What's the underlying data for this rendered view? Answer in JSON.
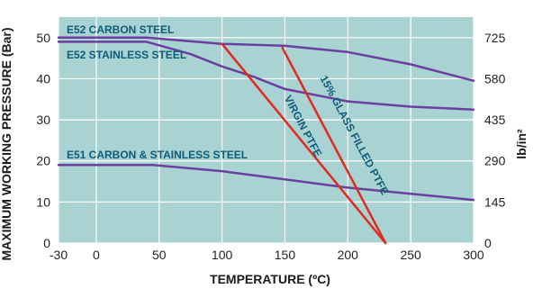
{
  "chart_data": {
    "type": "line",
    "xlabel": "TEMPERATURE (ºC)",
    "ylabel": "MAXIMUM WORKING PRESSURE (Bar)",
    "y2label": "lb/in²",
    "xlim": [
      -30,
      300
    ],
    "ylim": [
      0,
      55
    ],
    "x_ticks": [
      -30,
      0,
      50,
      100,
      150,
      200,
      250,
      300
    ],
    "y_ticks": [
      0,
      10,
      20,
      30,
      40,
      50
    ],
    "y2_ticks": [
      0,
      145,
      290,
      435,
      580,
      725
    ],
    "grid": true,
    "colors": {
      "plot_background": "#a9d2d2",
      "grid": "#ffffff",
      "metal_lines": "#6a3fa0",
      "ptfe_lines": "#e02a1f",
      "labels": "#0e5c78"
    },
    "series": [
      {
        "name": "E52 CARBON STEEL",
        "color": "#6a3fa0",
        "points": [
          [
            -30,
            50
          ],
          [
            40,
            50
          ],
          [
            100,
            48.5
          ],
          [
            150,
            48
          ],
          [
            200,
            46.5
          ],
          [
            250,
            43.5
          ],
          [
            300,
            39.5
          ]
        ]
      },
      {
        "name": "E52 STAINLESS STEEL",
        "color": "#6a3fa0",
        "points": [
          [
            -30,
            49
          ],
          [
            40,
            49
          ],
          [
            75,
            46
          ],
          [
            100,
            43
          ],
          [
            125,
            40.5
          ],
          [
            150,
            37.5
          ],
          [
            200,
            34.5
          ],
          [
            250,
            33.2
          ],
          [
            300,
            32.5
          ]
        ]
      },
      {
        "name": "E51 CARBON & STAINLESS STEEL",
        "color": "#6a3fa0",
        "points": [
          [
            -30,
            19
          ],
          [
            45,
            19
          ],
          [
            100,
            17.5
          ],
          [
            150,
            15.5
          ],
          [
            200,
            13.5
          ],
          [
            250,
            12
          ],
          [
            300,
            10.5
          ]
        ]
      },
      {
        "name": "VIRGIN PTFE",
        "color": "#e02a1f",
        "points": [
          [
            100,
            48.5
          ],
          [
            230,
            0
          ]
        ]
      },
      {
        "name": "15% GLASS FILLED PTFE",
        "color": "#e02a1f",
        "points": [
          [
            148,
            47.5
          ],
          [
            230,
            0
          ]
        ]
      }
    ]
  }
}
